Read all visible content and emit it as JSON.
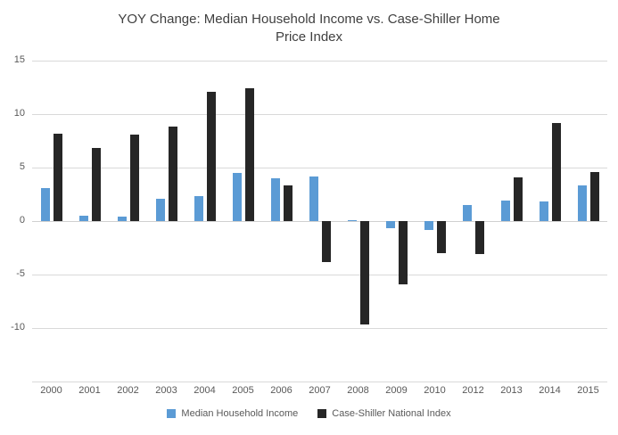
{
  "chart_data": {
    "type": "bar",
    "title": "YOY Change: Median Household Income vs. Case-Shiller Home Price Index",
    "categories": [
      "2000",
      "2001",
      "2002",
      "2003",
      "2004",
      "2005",
      "2006",
      "2007",
      "2008",
      "2009",
      "2010",
      "2012",
      "2013",
      "2014",
      "2015"
    ],
    "series": [
      {
        "name": "Median Household Income",
        "color": "#5B9BD5",
        "values": [
          3.1,
          0.5,
          0.4,
          2.1,
          2.3,
          4.5,
          4.0,
          4.2,
          0.1,
          -0.7,
          -0.8,
          1.5,
          1.9,
          1.8,
          3.3
        ]
      },
      {
        "name": "Case-Shiller National Index",
        "color": "#262626",
        "values": [
          8.2,
          6.8,
          8.1,
          8.8,
          12.1,
          12.4,
          3.3,
          -3.8,
          -9.7,
          -5.9,
          -3.0,
          -3.1,
          4.1,
          9.2,
          4.6
        ]
      }
    ],
    "ylim": [
      -15,
      15
    ],
    "yticks": [
      {
        "value": 15,
        "label": "15"
      },
      {
        "value": 10,
        "label": "10"
      },
      {
        "value": 5,
        "label": "5"
      },
      {
        "value": 0,
        "label": "0"
      },
      {
        "value": -5,
        "label": "-5"
      },
      {
        "value": -10,
        "label": "-10"
      },
      {
        "value": -15,
        "label": ""
      }
    ],
    "grid": true,
    "legend_position": "bottom",
    "colors": {
      "grid": "#D9D9D9",
      "zero_axis": "#D0D0D0",
      "axis_text": "#595959",
      "title_text": "#404040",
      "background": "#FFFFFF"
    }
  }
}
